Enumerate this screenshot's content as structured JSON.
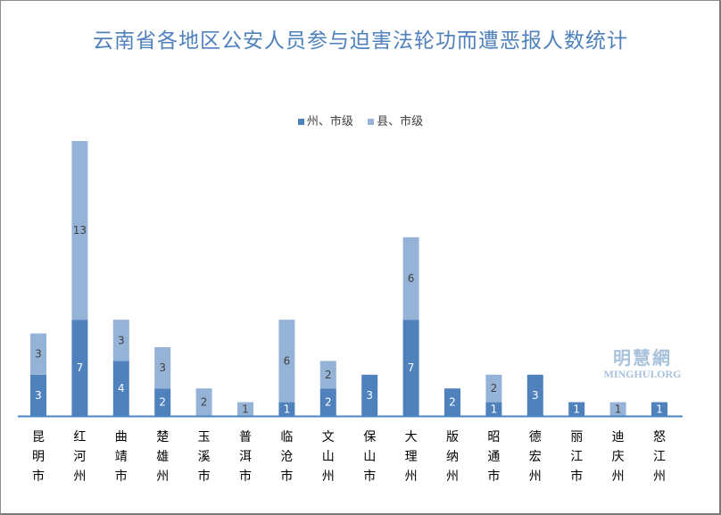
{
  "chart_data": {
    "type": "bar",
    "stacked": true,
    "title": "云南省各地区公安人员参与迫害法轮功而遭恶报人数统计",
    "categories": [
      "昆明市",
      "红河州",
      "曲靖市",
      "楚雄州",
      "玉溪市",
      "普洱市",
      "临沧市",
      "文山州",
      "保山市",
      "大理州",
      "版纳州",
      "昭通市",
      "德宏州",
      "丽江市",
      "迪庆州",
      "怒江州"
    ],
    "series": [
      {
        "name": "州、市级",
        "color": "#4f81bd",
        "values": [
          3,
          7,
          4,
          2,
          0,
          0,
          1,
          2,
          3,
          7,
          2,
          1,
          3,
          1,
          0,
          1
        ]
      },
      {
        "name": "县、市级",
        "color": "#95b3d7",
        "values": [
          3,
          13,
          3,
          3,
          2,
          1,
          6,
          2,
          0,
          6,
          0,
          2,
          0,
          0,
          1,
          0
        ]
      }
    ],
    "ylim": [
      0,
      20
    ],
    "grid": false,
    "legend": "top-center",
    "data_labels": true
  },
  "watermark": {
    "cn": "明慧網",
    "en": "MINGHUI.ORG"
  }
}
